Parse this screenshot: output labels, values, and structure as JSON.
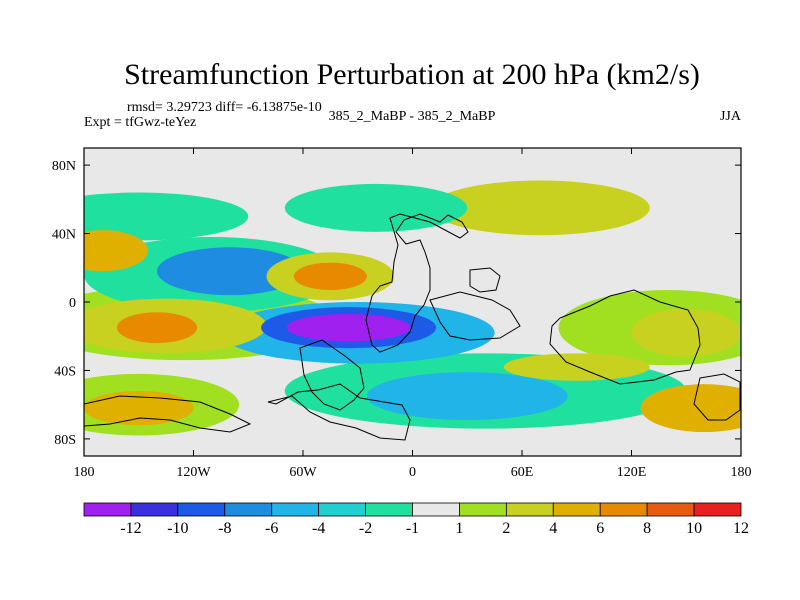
{
  "chart_data": {
    "type": "heatmap",
    "title": "Streamfunction Perturbation at 200 hPa (km2/s)",
    "stats_text": "rmsd= 3.29723 diff= -6.13875e-10",
    "left_label": "Expt = tfGwz-teYez",
    "center_label": "385_2_MaBP - 385_2_MaBP",
    "right_label": "JJA",
    "x_ticks": [
      {
        "value": -180,
        "label": "180"
      },
      {
        "value": -120,
        "label": "120W"
      },
      {
        "value": -60,
        "label": "60W"
      },
      {
        "value": 0,
        "label": "0"
      },
      {
        "value": 60,
        "label": "60E"
      },
      {
        "value": 120,
        "label": "120E"
      },
      {
        "value": 180,
        "label": "180"
      }
    ],
    "y_ticks": [
      {
        "value": 80,
        "label": "80N"
      },
      {
        "value": 40,
        "label": "40N"
      },
      {
        "value": 0,
        "label": "0"
      },
      {
        "value": -40,
        "label": "40S"
      },
      {
        "value": -80,
        "label": "80S"
      }
    ],
    "xlim": [
      -180,
      180
    ],
    "ylim": [
      -90,
      90
    ],
    "colorbar": {
      "labels": [
        "-12",
        "-10",
        "-8",
        "-6",
        "-4",
        "-2",
        "-1",
        "1",
        "2",
        "4",
        "6",
        "8",
        "10",
        "12"
      ],
      "colors": [
        "#a020f0",
        "#3a30e0",
        "#1e5ae8",
        "#1e8ce0",
        "#20b4e8",
        "#20d0d0",
        "#20e0a0",
        "#e8e8e8",
        "#a0e020",
        "#c8d020",
        "#e0b000",
        "#e88a00",
        "#e85a10",
        "#e82020"
      ]
    },
    "blobs": [
      {
        "lon": -35,
        "lat": -15,
        "rlon": 34,
        "rlat": 8,
        "level": 0
      },
      {
        "lon": -35,
        "lat": -15,
        "rlon": 48,
        "rlat": 12,
        "level": 2
      },
      {
        "lon": -30,
        "lat": -18,
        "rlon": 75,
        "rlat": 18,
        "level": 4
      },
      {
        "lon": -100,
        "lat": 18,
        "rlon": 40,
        "rlat": 14,
        "level": 3
      },
      {
        "lon": -110,
        "lat": 16,
        "rlon": 70,
        "rlat": 22,
        "level": 6
      },
      {
        "lon": -140,
        "lat": -15,
        "rlon": 22,
        "rlat": 9,
        "level": 11
      },
      {
        "lon": -135,
        "lat": -14,
        "rlon": 55,
        "rlat": 16,
        "level": 9
      },
      {
        "lon": -125,
        "lat": -12,
        "rlon": 85,
        "rlat": 22,
        "level": 8
      },
      {
        "lon": -45,
        "lat": 15,
        "rlon": 20,
        "rlat": 8,
        "level": 11
      },
      {
        "lon": -45,
        "lat": 15,
        "rlon": 35,
        "rlat": 14,
        "level": 9
      },
      {
        "lon": 30,
        "lat": -55,
        "rlon": 55,
        "rlat": 14,
        "level": 4
      },
      {
        "lon": 40,
        "lat": -52,
        "rlon": 110,
        "rlat": 22,
        "level": 6
      },
      {
        "lon": 150,
        "lat": -18,
        "rlon": 30,
        "rlat": 14,
        "level": 9
      },
      {
        "lon": 140,
        "lat": -15,
        "rlon": 60,
        "rlat": 22,
        "level": 8
      },
      {
        "lon": -150,
        "lat": -62,
        "rlon": 30,
        "rlat": 10,
        "level": 10
      },
      {
        "lon": -150,
        "lat": -60,
        "rlon": 55,
        "rlat": 18,
        "level": 8
      },
      {
        "lon": -150,
        "lat": 50,
        "rlon": 60,
        "rlat": 14,
        "level": 6
      },
      {
        "lon": -20,
        "lat": 55,
        "rlon": 50,
        "rlat": 14,
        "level": 6
      },
      {
        "lon": 70,
        "lat": 55,
        "rlon": 60,
        "rlat": 16,
        "level": 9
      },
      {
        "lon": 160,
        "lat": -62,
        "rlon": 35,
        "rlat": 14,
        "level": 10
      },
      {
        "lon": -170,
        "lat": 30,
        "rlon": 25,
        "rlat": 12,
        "level": 10
      },
      {
        "lon": 90,
        "lat": -38,
        "rlon": 40,
        "rlat": 8,
        "level": 9
      }
    ]
  }
}
